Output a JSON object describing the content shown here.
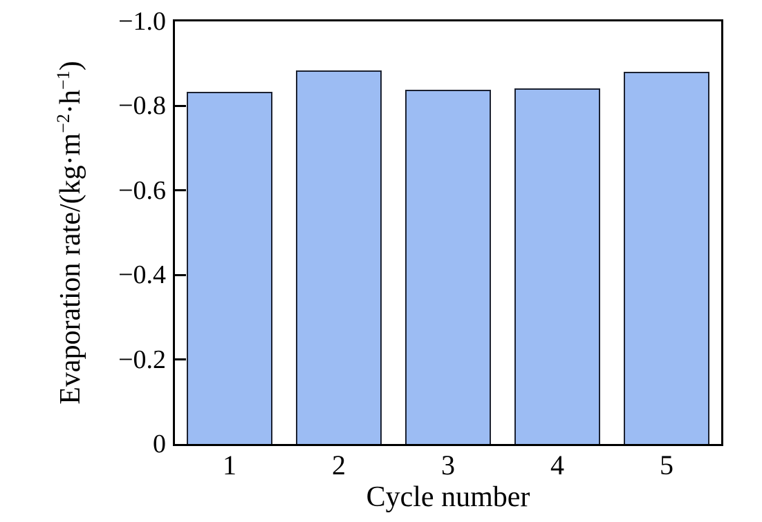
{
  "chart_data": {
    "type": "bar",
    "title": "",
    "xlabel": "Cycle number",
    "ylabel_text": "Evaporation rate/(kg·m−2·h−1)",
    "ylabel_parts": {
      "pre": "Evaporation rate/(kg·m",
      "sup1": "−2",
      "mid": "·h",
      "sup2": "−1",
      "post": ")"
    },
    "categories": [
      "1",
      "2",
      "3",
      "4",
      "5"
    ],
    "values": [
      0.834,
      0.884,
      0.838,
      0.842,
      0.881
    ],
    "y_axis": {
      "range": [
        0,
        1.0
      ],
      "ticks": [
        {
          "label": "0",
          "value": 0
        },
        {
          "label": "−0.2",
          "value": 0.2
        },
        {
          "label": "−0.4",
          "value": 0.4
        },
        {
          "label": "−0.6",
          "value": 0.6
        },
        {
          "label": "−0.8",
          "value": 0.8
        },
        {
          "label": "−1.0",
          "value": 1.0
        }
      ],
      "note": "tick labels shown as negative magnitudes increasing upward, 0 at bottom"
    },
    "legend": "none",
    "grid": false,
    "layout": {
      "plot_border": "full box",
      "tick_direction": "in"
    },
    "colors": {
      "bar_fill": "#9cbcf3",
      "bar_border": "#1b2130",
      "axis": "#000000",
      "background": "#ffffff"
    }
  }
}
